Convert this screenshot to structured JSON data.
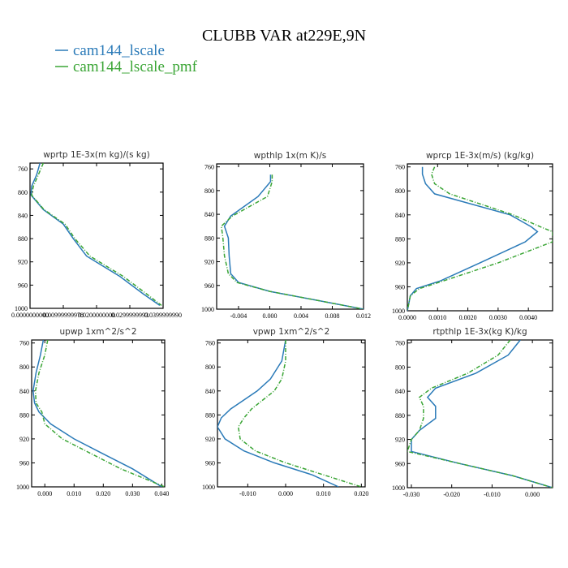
{
  "title": "CLUBB VAR at229E,9N",
  "colors": {
    "series1": "#2a7ab8",
    "series2": "#3aa535"
  },
  "legend": [
    "cam144_lscale",
    "cam144_lscale_pmf"
  ],
  "chart_data": [
    {
      "type": "line",
      "title": "wprtp  1E-3x(m kg)/(s kg)",
      "xlim": [
        0,
        0.04
      ],
      "ylim": [
        1000,
        750
      ],
      "y_reversed": true,
      "xticks": [
        0,
        0.01,
        0.02,
        0.03,
        0.04
      ],
      "xticklabels": [
        "0.0000000000",
        "0.00999999978",
        "0.0200000000",
        "0.0299999993",
        "0.0399999990"
      ],
      "yticks": [
        760,
        800,
        840,
        880,
        920,
        960,
        1000
      ],
      "yticklabels": [
        "760",
        "800",
        "840",
        "880",
        "920",
        "960",
        "1000"
      ],
      "series": [
        {
          "name": "cam144_lscale",
          "style": "solid",
          "x": [
            0.003,
            0.002,
            0.0005,
            0.0003,
            0.004,
            0.01,
            0.013,
            0.017,
            0.027,
            0.034,
            0.039
          ],
          "y": [
            750,
            770,
            790,
            805,
            830,
            855,
            880,
            910,
            945,
            975,
            995
          ]
        },
        {
          "name": "cam144_lscale_pmf",
          "style": "dashed",
          "x": [
            0.004,
            0.0025,
            0.001,
            0.0005,
            0.0042,
            0.0105,
            0.0135,
            0.018,
            0.028,
            0.035,
            0.0395
          ],
          "y": [
            750,
            770,
            790,
            805,
            830,
            855,
            880,
            910,
            945,
            975,
            995
          ]
        }
      ]
    },
    {
      "type": "line",
      "title": "wpthlp  1x(m K)/s",
      "xlim": [
        -0.0068,
        0.012
      ],
      "ylim": [
        1000,
        755
      ],
      "y_reversed": true,
      "xticks": [
        -0.004,
        0.0,
        0.004,
        0.008,
        0.012
      ],
      "xticklabels": [
        "-0.004",
        "0.000",
        "0.004",
        "0.008",
        "0.012"
      ],
      "yticks": [
        760,
        800,
        840,
        880,
        920,
        960,
        1000
      ],
      "yticklabels": [
        "760",
        "800",
        "840",
        "880",
        "920",
        "960",
        "1000"
      ],
      "series": [
        {
          "name": "cam144_lscale",
          "style": "solid",
          "x": [
            0.0001,
            0.0001,
            -0.0015,
            -0.005,
            -0.0058,
            -0.0053,
            -0.0052,
            -0.005,
            -0.004,
            0.0,
            0.006,
            0.012
          ],
          "y": [
            773,
            785,
            810,
            843,
            860,
            880,
            910,
            940,
            955,
            970,
            985,
            1000
          ]
        },
        {
          "name": "cam144_lscale_pmf",
          "style": "dashed",
          "x": [
            0.0003,
            0.0003,
            -0.0003,
            -0.0048,
            -0.0062,
            -0.006,
            -0.0058,
            -0.0053,
            -0.0042,
            0.0,
            0.006,
            0.012
          ],
          "y": [
            773,
            785,
            810,
            843,
            860,
            880,
            910,
            940,
            955,
            970,
            985,
            1000
          ]
        }
      ]
    },
    {
      "type": "line",
      "title": "wprcp  1E-3x(m/s) (kg/kg)",
      "xlim": [
        0,
        0.0048
      ],
      "ylim": [
        1000,
        755
      ],
      "y_reversed": true,
      "xticks": [
        0,
        0.001,
        0.002,
        0.003,
        0.004
      ],
      "xticklabels": [
        "0.0000",
        "0.0010",
        "0.0020",
        "0.0030",
        "0.0040"
      ],
      "yticks": [
        760,
        800,
        840,
        880,
        920,
        960,
        1000
      ],
      "yticklabels": [
        "760",
        "800",
        "840",
        "880",
        "920",
        "960",
        "1000"
      ],
      "series": [
        {
          "name": "cam144_lscale",
          "style": "solid",
          "x": [
            0.0005,
            0.0005,
            0.0006,
            0.0009,
            0.0034,
            0.0041,
            0.0043,
            0.0039,
            0.0024,
            0.0011,
            0.0003,
            0.0001,
            0.0
          ],
          "y": [
            760,
            772,
            788,
            805,
            840,
            860,
            868,
            885,
            920,
            950,
            963,
            975,
            1000
          ]
        },
        {
          "name": "cam144_lscale_pmf",
          "style": "dashed",
          "x": [
            0.0009,
            0.0008,
            0.0009,
            0.0014,
            0.0035,
            0.0044,
            0.0048,
            0.0048,
            0.003,
            0.0012,
            0.0004,
            0.0001,
            0.0
          ],
          "y": [
            760,
            772,
            788,
            805,
            840,
            860,
            868,
            885,
            920,
            950,
            963,
            975,
            1000
          ]
        }
      ]
    },
    {
      "type": "line",
      "title": "upwp  1xm^2/s^2",
      "xlim": [
        -0.0045,
        0.041
      ],
      "ylim": [
        1000,
        755
      ],
      "y_reversed": true,
      "xticks": [
        0.0,
        0.01,
        0.02,
        0.03,
        0.04
      ],
      "xticklabels": [
        "0.000",
        "0.010",
        "0.020",
        "0.030",
        "0.040"
      ],
      "yticks": [
        760,
        800,
        840,
        880,
        920,
        960,
        1000
      ],
      "yticklabels": [
        "760",
        "800",
        "840",
        "880",
        "920",
        "960",
        "1000"
      ],
      "series": [
        {
          "name": "cam144_lscale",
          "style": "solid",
          "x": [
            -0.0005,
            -0.0015,
            -0.003,
            -0.004,
            -0.0035,
            -0.002,
            0.002,
            0.01,
            0.02,
            0.03,
            0.04
          ],
          "y": [
            755,
            780,
            810,
            840,
            860,
            875,
            895,
            920,
            945,
            970,
            1000
          ]
        },
        {
          "name": "cam144_lscale_pmf",
          "style": "dashed",
          "x": [
            0.001,
            0.0,
            -0.002,
            -0.0032,
            -0.003,
            -0.001,
            0.0,
            0.006,
            0.016,
            0.026,
            0.041
          ],
          "y": [
            755,
            780,
            810,
            840,
            860,
            875,
            895,
            920,
            945,
            970,
            1000
          ]
        }
      ]
    },
    {
      "type": "line",
      "title": "vpwp  1xm^2/s^2",
      "xlim": [
        -0.018,
        0.021
      ],
      "ylim": [
        1000,
        755
      ],
      "y_reversed": true,
      "xticks": [
        -0.01,
        0.0,
        0.01,
        0.02
      ],
      "xticklabels": [
        "-0.010",
        "0.000",
        "0.010",
        "0.020"
      ],
      "yticks": [
        760,
        800,
        840,
        880,
        920,
        960,
        1000
      ],
      "yticklabels": [
        "760",
        "800",
        "840",
        "880",
        "920",
        "960",
        "1000"
      ],
      "series": [
        {
          "name": "cam144_lscale",
          "style": "solid",
          "x": [
            0.0,
            -0.001,
            -0.004,
            -0.0075,
            -0.011,
            -0.0145,
            -0.017,
            -0.018,
            -0.016,
            -0.011,
            -0.003,
            0.007,
            0.014
          ],
          "y": [
            755,
            790,
            820,
            840,
            855,
            870,
            885,
            900,
            920,
            940,
            960,
            980,
            1000
          ]
        },
        {
          "name": "cam144_lscale_pmf",
          "style": "dashed",
          "x": [
            0.0,
            0.0,
            -0.001,
            -0.003,
            -0.006,
            -0.009,
            -0.011,
            -0.0125,
            -0.012,
            -0.008,
            0.0,
            0.01,
            0.02
          ],
          "y": [
            755,
            790,
            820,
            840,
            855,
            870,
            885,
            900,
            920,
            940,
            960,
            980,
            1000
          ]
        }
      ]
    },
    {
      "type": "line",
      "title": "rtpthlp  1E-3x(kg K)/kg",
      "xlim": [
        -0.031,
        0.005
      ],
      "ylim": [
        1000,
        755
      ],
      "y_reversed": true,
      "xticks": [
        -0.03,
        -0.02,
        -0.01,
        0.0
      ],
      "xticklabels": [
        "-0.030",
        "-0.020",
        "-0.010",
        "0.000"
      ],
      "yticks": [
        760,
        800,
        840,
        880,
        920,
        960,
        1000
      ],
      "yticklabels": [
        "760",
        "800",
        "840",
        "880",
        "920",
        "960",
        "1000"
      ],
      "series": [
        {
          "name": "cam144_lscale",
          "style": "solid",
          "x": [
            -0.003,
            -0.006,
            -0.014,
            -0.024,
            -0.026,
            -0.024,
            -0.024,
            -0.028,
            -0.03,
            -0.03,
            -0.018,
            -0.005,
            0.005
          ],
          "y": [
            755,
            780,
            810,
            835,
            850,
            865,
            885,
            905,
            920,
            940,
            960,
            980,
            1000
          ]
        },
        {
          "name": "cam144_lscale_pmf",
          "style": "dashed",
          "x": [
            -0.0055,
            -0.0085,
            -0.016,
            -0.025,
            -0.028,
            -0.027,
            -0.027,
            -0.028,
            -0.03,
            -0.031,
            -0.018,
            -0.005,
            0.005
          ],
          "y": [
            755,
            780,
            810,
            835,
            850,
            865,
            885,
            905,
            920,
            940,
            960,
            980,
            1000
          ]
        }
      ]
    }
  ]
}
